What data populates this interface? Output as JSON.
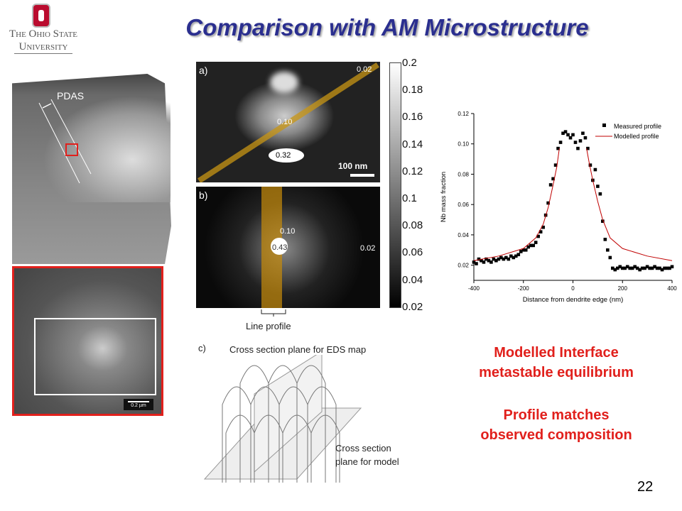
{
  "title": "Comparison with AM Microstructure",
  "logo": {
    "line1": "The Ohio State",
    "line2": "University"
  },
  "micrograph": {
    "label": "PDAS",
    "scale_bar": "0.2 µm"
  },
  "panel_a": {
    "label": "a)",
    "values": [
      "0.02",
      "0.10",
      "0.32"
    ],
    "scale": "100 nm"
  },
  "panel_b": {
    "label": "b)",
    "values": [
      "0.10",
      "0.43",
      "0.02"
    ],
    "line_profile": "Line profile"
  },
  "colorbar": [
    "0.2",
    "0.18",
    "0.16",
    "0.14",
    "0.12",
    "0.1",
    "0.08",
    "0.06",
    "0.04",
    "0.02"
  ],
  "panel_c": {
    "label": "c)",
    "eds_plane": "Cross section plane for EDS map",
    "model_plane_1": "Cross section",
    "model_plane_2": "plane for model"
  },
  "chart_data": {
    "type": "scatter",
    "xlabel": "Distance from dendrite edge (nm)",
    "ylabel": "Nb mass fraction",
    "xlim": [
      -400,
      400
    ],
    "ylim": [
      0.01,
      0.12
    ],
    "xticks": [
      -400,
      -200,
      0,
      200,
      400
    ],
    "xtick_labels": [
      "-400",
      "-200",
      "0",
      "200",
      "400"
    ],
    "yticks": [
      0.02,
      0.04,
      0.06,
      0.08,
      0.1,
      0.12
    ],
    "ytick_labels": [
      "0.02",
      "0.04",
      "0.06",
      "0.08",
      "0.10",
      "0.12"
    ],
    "legend": {
      "position": "top-right",
      "entries": [
        "Measured profile",
        "Modelled profile"
      ]
    },
    "series": [
      {
        "name": "Measured profile",
        "x": [
          -400,
          -390,
          -380,
          -370,
          -360,
          -350,
          -340,
          -330,
          -320,
          -310,
          -300,
          -290,
          -280,
          -270,
          -260,
          -250,
          -240,
          -230,
          -220,
          -210,
          -200,
          -190,
          -180,
          -170,
          -160,
          -150,
          -140,
          -130,
          -120,
          -110,
          -100,
          -90,
          -80,
          -70,
          -60,
          -50,
          -40,
          -30,
          -20,
          -10,
          0,
          10,
          20,
          30,
          40,
          50,
          60,
          70,
          80,
          90,
          100,
          110,
          120,
          130,
          140,
          150,
          160,
          170,
          180,
          190,
          200,
          210,
          220,
          230,
          240,
          250,
          260,
          270,
          280,
          290,
          300,
          310,
          320,
          330,
          340,
          350,
          360,
          370,
          380,
          390,
          400
        ],
        "y": [
          0.022,
          0.021,
          0.024,
          0.023,
          0.022,
          0.024,
          0.023,
          0.022,
          0.024,
          0.023,
          0.024,
          0.025,
          0.024,
          0.025,
          0.024,
          0.026,
          0.025,
          0.026,
          0.027,
          0.029,
          0.03,
          0.03,
          0.032,
          0.033,
          0.033,
          0.035,
          0.039,
          0.042,
          0.045,
          0.053,
          0.061,
          0.073,
          0.077,
          0.086,
          0.097,
          0.101,
          0.107,
          0.108,
          0.106,
          0.104,
          0.106,
          0.101,
          0.097,
          0.102,
          0.107,
          0.104,
          0.097,
          0.086,
          0.076,
          0.083,
          0.072,
          0.067,
          0.049,
          0.037,
          0.03,
          0.025,
          0.018,
          0.017,
          0.018,
          0.019,
          0.018,
          0.018,
          0.019,
          0.018,
          0.018,
          0.019,
          0.018,
          0.017,
          0.018,
          0.018,
          0.019,
          0.018,
          0.018,
          0.019,
          0.018,
          0.018,
          0.017,
          0.018,
          0.018,
          0.018,
          0.019
        ]
      },
      {
        "name": "Modelled profile",
        "segments": [
          {
            "x": [
              -400,
              -300,
              -200,
              -150,
              -120,
              -100,
              -80,
              -65,
              -55
            ],
            "y": [
              0.023,
              0.026,
              0.031,
              0.038,
              0.047,
              0.058,
              0.073,
              0.085,
              0.097
            ]
          },
          {
            "x": [
              55,
              65,
              80,
              100,
              120,
              150,
              200,
              300,
              400
            ],
            "y": [
              0.097,
              0.088,
              0.076,
              0.062,
              0.05,
              0.038,
              0.031,
              0.026,
              0.023
            ]
          }
        ]
      }
    ],
    "colors": {
      "measured": "#000000",
      "modelled": "#c00000"
    }
  },
  "conclusions": {
    "line1": "Modelled Interface",
    "line2": "metastable equilibrium",
    "line3": "Profile matches",
    "line4": "observed composition"
  },
  "page_number": "22"
}
